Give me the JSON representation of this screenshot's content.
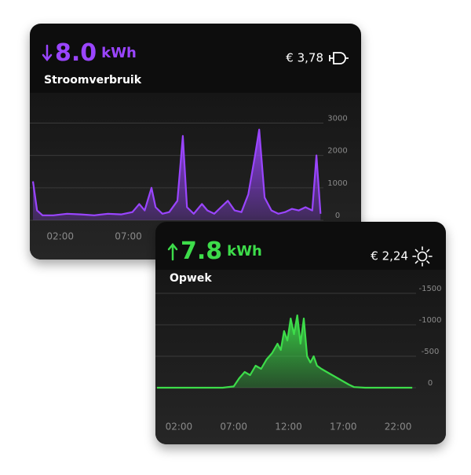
{
  "chart_data": [
    {
      "type": "line",
      "headline": {
        "value": "8.0",
        "unit": "kWh"
      },
      "title": "Stroomverbruik",
      "cost": "€ 3,78",
      "color": "#9a45ff",
      "x": [
        0,
        0.3,
        0.7,
        1.5,
        2.5,
        3.5,
        4.5,
        5.5,
        6.5,
        7.3,
        7.8,
        8.2,
        8.7,
        9,
        9.5,
        10,
        10.6,
        11,
        11.3,
        11.8,
        12.4,
        12.8,
        13.3,
        13.8,
        14.3,
        14.8,
        15.3,
        15.8,
        16.3,
        16.6,
        17,
        17.5,
        18,
        18.5,
        19,
        19.5,
        20,
        20.5,
        20.8,
        21.1
      ],
      "values": [
        1200,
        300,
        150,
        150,
        200,
        180,
        150,
        200,
        180,
        250,
        500,
        300,
        1000,
        400,
        200,
        250,
        600,
        2600,
        400,
        200,
        500,
        300,
        200,
        400,
        600,
        300,
        250,
        800,
        2000,
        2800,
        700,
        300,
        200,
        250,
        350,
        300,
        400,
        300,
        2000,
        200
      ],
      "xlim": [
        0,
        21.2
      ],
      "xticks": [
        {
          "value": 2,
          "label": "02:00"
        },
        {
          "value": 7,
          "label": "07:00"
        }
      ],
      "ylim": [
        0,
        3400
      ],
      "yticks": [
        0,
        1000,
        2000,
        3000
      ],
      "grid": true
    },
    {
      "type": "line",
      "headline": {
        "value": "7.8",
        "unit": "kWh"
      },
      "title": "Opwek",
      "cost": "€ 2,24",
      "color": "#3ddc4a",
      "x": [
        0,
        6,
        7,
        7.5,
        8,
        8.5,
        9,
        9.5,
        10,
        10.5,
        11,
        11.3,
        11.6,
        11.9,
        12.2,
        12.5,
        12.8,
        13.1,
        13.4,
        13.7,
        14,
        14.3,
        14.6,
        15,
        15.5,
        16,
        16.5,
        17,
        17.5,
        18,
        19,
        23.3
      ],
      "values": [
        0,
        0,
        -20,
        -150,
        -250,
        -200,
        -350,
        -300,
        -450,
        -550,
        -700,
        -600,
        -900,
        -750,
        -1100,
        -850,
        -1150,
        -700,
        -1100,
        -500,
        -400,
        -500,
        -350,
        -300,
        -250,
        -200,
        -150,
        -100,
        -50,
        -10,
        0,
        0
      ],
      "xlim": [
        0,
        23.5
      ],
      "xticks": [
        {
          "value": 2,
          "label": "02:00"
        },
        {
          "value": 7,
          "label": "07:00"
        },
        {
          "value": 12,
          "label": "12:00"
        },
        {
          "value": 17,
          "label": "17:00"
        },
        {
          "value": 22,
          "label": "22:00"
        }
      ],
      "ylim": [
        400,
        -1600
      ],
      "yticks": [
        -1500,
        -1000,
        -500,
        0
      ],
      "grid": true
    }
  ]
}
